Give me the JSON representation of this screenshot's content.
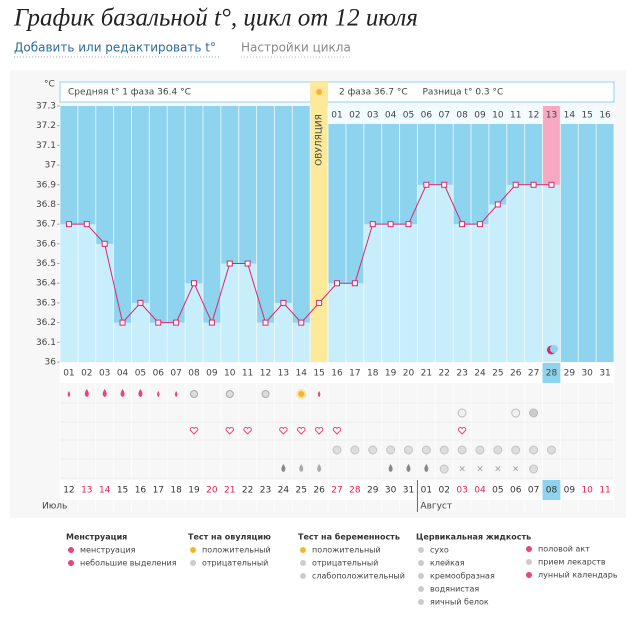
{
  "header": {
    "title": "График базальной t°, цикл от 12 июля",
    "links": [
      "Добавить или редактировать t°",
      "Настройки цикла"
    ]
  },
  "chart_data": {
    "type": "line",
    "y_unit": "°C",
    "phase1_label": "Средняя t° 1 фаза 36.4 °C",
    "phase2_label": "2 фаза 36.7 °C",
    "diff_label": "Разница t° 0.3 °C",
    "ovulation_label": "ОВУЛЯЦИЯ",
    "categories": [
      "01",
      "02",
      "03",
      "04",
      "05",
      "06",
      "07",
      "08",
      "09",
      "10",
      "11",
      "12",
      "13",
      "14",
      "15",
      "16",
      "17",
      "18",
      "19",
      "20",
      "21",
      "22",
      "23",
      "24",
      "25",
      "26",
      "27",
      "28",
      "29",
      "30",
      "31"
    ],
    "phase2_days": [
      "01",
      "02",
      "03",
      "04",
      "05",
      "06",
      "07",
      "08",
      "09",
      "10",
      "11",
      "12",
      "13",
      "14",
      "15",
      "16"
    ],
    "values": [
      36.7,
      36.7,
      36.6,
      36.2,
      36.3,
      36.2,
      36.2,
      36.4,
      36.2,
      36.5,
      36.5,
      36.2,
      36.3,
      36.2,
      36.3,
      36.4,
      36.4,
      36.7,
      36.7,
      36.7,
      36.9,
      36.9,
      36.7,
      36.7,
      36.8,
      36.9,
      36.9,
      36.9,
      null,
      null,
      null
    ],
    "dates": [
      "12",
      "13",
      "14",
      "15",
      "16",
      "17",
      "18",
      "19",
      "20",
      "21",
      "22",
      "23",
      "24",
      "25",
      "26",
      "27",
      "28",
      "29",
      "30",
      "31",
      "01",
      "02",
      "03",
      "04",
      "05",
      "06",
      "07",
      "08",
      "09",
      "10",
      "11"
    ],
    "date_colors": [
      "#333",
      "#e0204f",
      "#e0204f",
      "#333",
      "#333",
      "#333",
      "#333",
      "#333",
      "#e0204f",
      "#e0204f",
      "#333",
      "#333",
      "#333",
      "#333",
      "#333",
      "#e0204f",
      "#e0204f",
      "#333",
      "#333",
      "#333",
      "#333",
      "#333",
      "#e0204f",
      "#e0204f",
      "#333",
      "#333",
      "#333",
      "#333",
      "#333",
      "#e0204f",
      "#e0204f"
    ],
    "months": [
      "Июль",
      "Август"
    ],
    "ylim": [
      36,
      37.3
    ],
    "yticks": [
      36,
      36.1,
      36.2,
      36.3,
      36.4,
      36.5,
      36.6,
      36.7,
      36.8,
      36.9,
      37,
      37.1,
      37.2,
      37.3
    ],
    "color": "#d8286e",
    "bar_color": "#c8edfb",
    "background_color": "#8ed4ef",
    "ovulation_color": "#fce99a"
  },
  "legend": {
    "groups": [
      {
        "title": "Менструация",
        "items": [
          "менструация",
          "небольшие выделения"
        ]
      },
      {
        "title": "Тест на овуляцию",
        "items": [
          "положительный",
          "отрицательный"
        ]
      },
      {
        "title": "Тест на беременность",
        "items": [
          "положительный",
          "отрицательный",
          "слабоположительный"
        ]
      },
      {
        "title": "Цервикальная жидкость",
        "items": [
          "сухо",
          "клейкая",
          "кремообразная",
          "водянистая",
          "яичный белок"
        ]
      },
      {
        "items": [
          "половой акт",
          "прием лекарств",
          "лунный календарь"
        ]
      }
    ]
  }
}
